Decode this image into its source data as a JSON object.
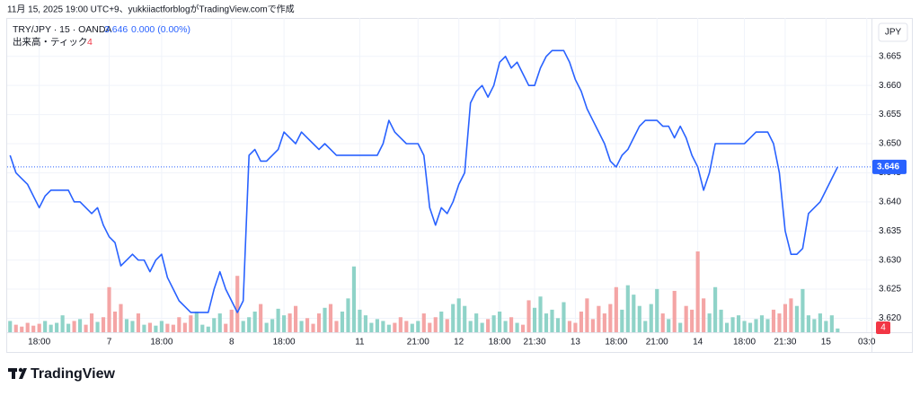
{
  "chart_data": {
    "type": "line",
    "caption": "11月 15, 2025 19:00 UTC+9、yukkiiactforblogがTradingView.comで作成",
    "symbol": "TRY/JPY · 15 · OANDA",
    "change": "0.000 (0.00%)",
    "currency": "JPY",
    "logo": "TradingView",
    "categories": [
      null,
      null,
      null,
      null,
      null,
      "18:00",
      null,
      null,
      null,
      null,
      null,
      null,
      null,
      null,
      null,
      null,
      null,
      "7",
      null,
      null,
      null,
      null,
      null,
      null,
      null,
      null,
      "18:00",
      null,
      null,
      null,
      null,
      null,
      null,
      null,
      null,
      null,
      null,
      null,
      "8",
      null,
      null,
      null,
      null,
      null,
      null,
      null,
      null,
      "18:00",
      null,
      null,
      null,
      null,
      null,
      null,
      null,
      null,
      null,
      null,
      null,
      null,
      "11",
      null,
      null,
      null,
      null,
      null,
      null,
      null,
      null,
      null,
      "21:00",
      null,
      null,
      null,
      null,
      null,
      null,
      "12",
      null,
      null,
      null,
      null,
      null,
      null,
      "18:00",
      null,
      null,
      null,
      null,
      null,
      "21:30",
      null,
      null,
      null,
      null,
      null,
      null,
      "13",
      null,
      null,
      null,
      null,
      null,
      null,
      "18:00",
      null,
      null,
      null,
      null,
      null,
      null,
      "21:00",
      null,
      null,
      null,
      null,
      null,
      null,
      "14",
      null,
      null,
      null,
      null,
      null,
      null,
      null,
      "18:00",
      null,
      null,
      null,
      null,
      null,
      null,
      "21:30",
      null,
      null,
      null,
      null,
      null,
      null,
      "15",
      null,
      null,
      null,
      null,
      null,
      null,
      "03:0"
    ],
    "series": [
      {
        "name": "TRY/JPY",
        "color": "#2962ff",
        "values": [
          3.648,
          3.645,
          3.644,
          3.643,
          3.641,
          3.639,
          3.641,
          3.642,
          3.642,
          3.642,
          3.642,
          3.64,
          3.64,
          3.639,
          3.638,
          3.639,
          3.636,
          3.634,
          3.633,
          3.629,
          3.63,
          3.631,
          3.63,
          3.63,
          3.628,
          3.63,
          3.631,
          3.627,
          3.625,
          3.623,
          3.622,
          3.621,
          3.621,
          3.621,
          3.621,
          3.625,
          3.628,
          3.625,
          3.623,
          3.621,
          3.623,
          3.648,
          3.649,
          3.647,
          3.647,
          3.648,
          3.649,
          3.652,
          3.651,
          3.65,
          3.652,
          3.651,
          3.65,
          3.649,
          3.65,
          3.649,
          3.648,
          3.648,
          3.648,
          3.648,
          3.648,
          3.648,
          3.648,
          3.648,
          3.65,
          3.654,
          3.652,
          3.651,
          3.65,
          3.65,
          3.65,
          3.648,
          3.639,
          3.636,
          3.639,
          3.638,
          3.64,
          3.643,
          3.645,
          3.657,
          3.659,
          3.66,
          3.658,
          3.66,
          3.664,
          3.665,
          3.663,
          3.664,
          3.662,
          3.66,
          3.66,
          3.663,
          3.665,
          3.666,
          3.666,
          3.666,
          3.664,
          3.661,
          3.659,
          3.656,
          3.654,
          3.652,
          3.65,
          3.647,
          3.646,
          3.648,
          3.649,
          3.651,
          3.653,
          3.654,
          3.654,
          3.654,
          3.653,
          3.653,
          3.651,
          3.653,
          3.651,
          3.648,
          3.646,
          3.642,
          3.645,
          3.65,
          3.65,
          3.65,
          3.65,
          3.65,
          3.65,
          3.651,
          3.652,
          3.652,
          3.652,
          3.65,
          3.645,
          3.635,
          3.631,
          3.631,
          3.632,
          3.638,
          3.639,
          3.64,
          3.642,
          3.644,
          3.646,
          null,
          null,
          null,
          null,
          null
        ]
      },
      {
        "name": "出来高・ティック",
        "up_color": "#8fd3c8",
        "down_color": "#f4a5a5",
        "values": [
          12,
          8,
          6,
          10,
          7,
          9,
          12,
          8,
          10,
          18,
          9,
          12,
          14,
          8,
          20,
          11,
          16,
          48,
          22,
          30,
          14,
          12,
          20,
          8,
          10,
          7,
          12,
          9,
          8,
          16,
          10,
          18,
          22,
          8,
          6,
          15,
          20,
          9,
          24,
          60,
          12,
          16,
          22,
          30,
          10,
          14,
          25,
          18,
          20,
          28,
          12,
          15,
          9,
          20,
          26,
          30,
          12,
          22,
          36,
          70,
          24,
          18,
          10,
          14,
          12,
          8,
          10,
          16,
          12,
          9,
          12,
          20,
          10,
          16,
          22,
          14,
          30,
          36,
          28,
          12,
          20,
          10,
          14,
          18,
          22,
          12,
          16,
          10,
          8,
          34,
          26,
          38,
          20,
          24,
          15,
          32,
          12,
          10,
          22,
          36,
          14,
          28,
          20,
          30,
          48,
          24,
          50,
          40,
          28,
          12,
          30,
          46,
          20,
          14,
          44,
          10,
          28,
          24,
          86,
          36,
          20,
          48,
          24,
          10,
          16,
          18,
          12,
          10,
          14,
          18,
          14,
          24,
          20,
          30,
          36,
          28,
          46,
          18,
          14,
          20,
          12,
          18,
          4,
          null,
          null,
          null,
          null,
          null
        ]
      }
    ],
    "ylim": [
      3.6176,
      3.6716
    ],
    "yticks": [
      {
        "value": 3.62,
        "label": "3.620"
      },
      3.625,
      {
        "value": 3.63,
        "label": "3.630"
      },
      3.635,
      {
        "value": 3.64,
        "label": "3.640"
      },
      3.645,
      {
        "value": 3.65,
        "label": "3.650"
      },
      3.655,
      {
        "value": 3.66,
        "label": "3.660"
      },
      3.665
    ],
    "grid": true
  }
}
